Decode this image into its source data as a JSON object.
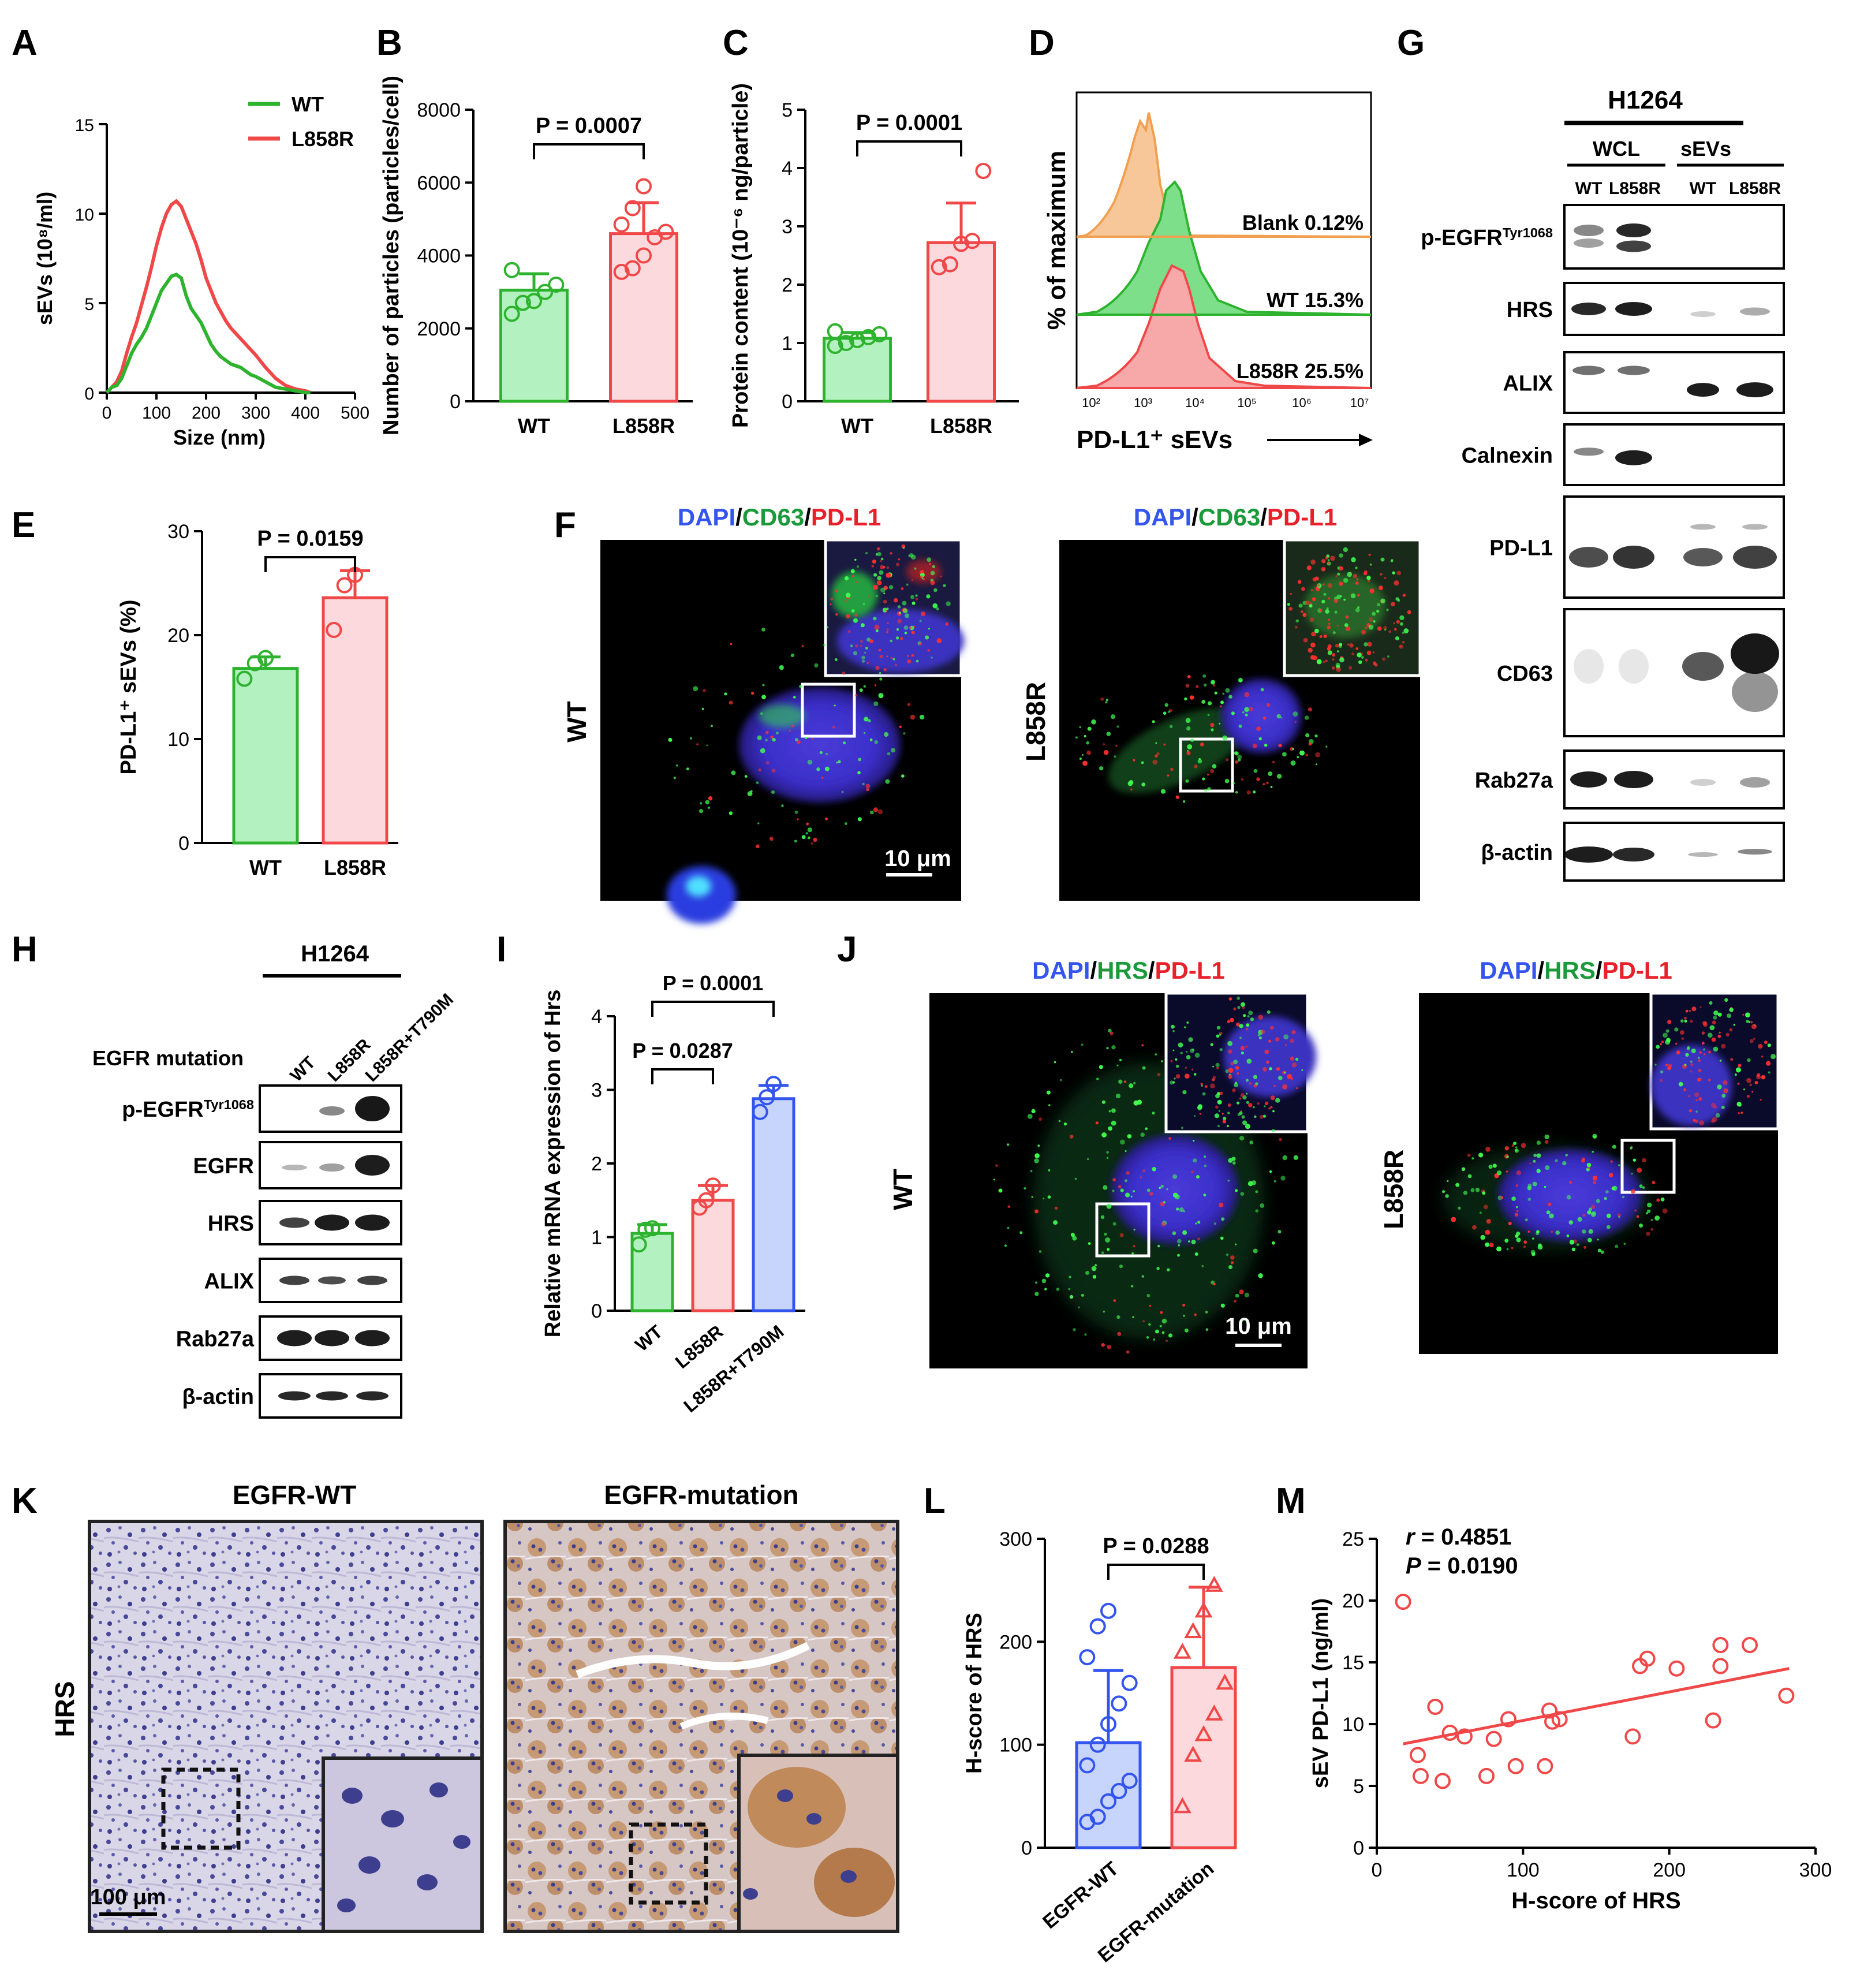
{
  "panel_letters": [
    "A",
    "B",
    "C",
    "D",
    "E",
    "F",
    "G",
    "H",
    "I",
    "J",
    "K",
    "L",
    "M"
  ],
  "colors": {
    "wt": "#2db32d",
    "mut": "#f04848",
    "wt_fill": "#b3f2c0",
    "mut_fill": "#fcd9dc",
    "blue": "#3355ee",
    "blue_fill": "#c7d4fb",
    "flow_orange": "#f0a050"
  },
  "stat_prefix": "P",
  "stat_sep": " = ",
  "chart_data": [
    {
      "id": "A",
      "type": "line",
      "ylabel": "sEVs (10⁸/ml)",
      "xlabel": "Size (nm)",
      "xlim": [
        0,
        500
      ],
      "ylim": [
        0,
        15
      ],
      "xticks": [
        0,
        100,
        200,
        300,
        400,
        500
      ],
      "yticks": [
        0,
        5,
        10,
        15
      ],
      "legend": "top-right",
      "series": [
        {
          "name": "WT",
          "color": "#2db32d",
          "x": [
            0,
            10,
            20,
            30,
            40,
            50,
            60,
            70,
            80,
            90,
            100,
            110,
            120,
            130,
            140,
            150,
            160,
            170,
            180,
            190,
            200,
            210,
            220,
            230,
            240,
            250,
            260,
            270,
            280,
            290,
            300,
            320,
            340,
            360,
            380,
            400,
            410
          ],
          "y": [
            0,
            0.3,
            0.4,
            0.8,
            1.5,
            2.2,
            2.7,
            3.1,
            3.6,
            4.3,
            5.0,
            5.7,
            6.1,
            6.5,
            6.6,
            6.4,
            5.4,
            4.7,
            4.3,
            3.9,
            3.3,
            2.7,
            2.3,
            2.0,
            1.8,
            1.6,
            1.5,
            1.4,
            1.2,
            1.0,
            0.9,
            0.6,
            0.3,
            0.2,
            0.1,
            0,
            0
          ]
        },
        {
          "name": "L858R",
          "color": "#f04848",
          "x": [
            0,
            10,
            20,
            30,
            40,
            50,
            60,
            70,
            80,
            90,
            100,
            110,
            120,
            130,
            140,
            150,
            160,
            170,
            180,
            190,
            200,
            210,
            220,
            230,
            240,
            250,
            260,
            270,
            280,
            290,
            300,
            320,
            340,
            360,
            380,
            400,
            410
          ],
          "y": [
            0,
            0.3,
            0.6,
            1.2,
            2.2,
            3.1,
            3.9,
            4.9,
            5.9,
            7.0,
            8.2,
            9.2,
            10.0,
            10.5,
            10.7,
            10.4,
            9.7,
            9.0,
            8.3,
            7.4,
            6.4,
            5.7,
            5.0,
            4.5,
            4.0,
            3.6,
            3.3,
            3.0,
            2.7,
            2.4,
            2.1,
            1.4,
            0.8,
            0.4,
            0.2,
            0.1,
            0
          ]
        }
      ]
    },
    {
      "id": "B",
      "type": "bar",
      "ylabel": "Number of particles (particles/cell)",
      "categories": [
        "WT",
        "L858R"
      ],
      "ylim": [
        0,
        8000
      ],
      "yticks": [
        0,
        2000,
        4000,
        6000,
        8000
      ],
      "values": [
        3050,
        4600
      ],
      "errors": [
        450,
        850
      ],
      "points": [
        [
          2400,
          2700,
          2750,
          3000,
          3200,
          3600
        ],
        [
          3550,
          3650,
          4000,
          4500,
          4650,
          4850,
          5300,
          5900
        ]
      ],
      "p_value": "0.0007"
    },
    {
      "id": "C",
      "type": "bar",
      "ylabel": "Protein content (10⁻⁶ ng/particle)",
      "categories": [
        "WT",
        "L858R"
      ],
      "ylim": [
        0,
        5
      ],
      "yticks": [
        0,
        1,
        2,
        3,
        4,
        5
      ],
      "values": [
        1.08,
        2.72
      ],
      "errors": [
        0.1,
        0.68
      ],
      "points": [
        [
          0.95,
          1.0,
          1.05,
          1.1,
          1.15,
          1.2
        ],
        [
          2.3,
          2.35,
          2.7,
          2.75,
          3.95
        ]
      ],
      "p_value": "0.0001"
    },
    {
      "id": "D",
      "type": "area",
      "ylabel": "% of maximum",
      "xlabel": "PD-L1⁺ sEVs",
      "xticks": [
        "10²",
        "10³",
        "10⁴",
        "10⁵",
        "10⁶",
        "10⁷"
      ],
      "series": [
        {
          "name": "Blank 0.12%",
          "color": "#f0a050"
        },
        {
          "name": "WT 15.3%",
          "color": "#2db32d"
        },
        {
          "name": "L858R 25.5%",
          "color": "#f04848"
        }
      ]
    },
    {
      "id": "E",
      "type": "bar",
      "ylabel": "PD-L1⁺ sEVs (%)",
      "categories": [
        "WT",
        "L858R"
      ],
      "ylim": [
        0,
        30
      ],
      "yticks": [
        0,
        10,
        20,
        30
      ],
      "values": [
        16.8,
        23.6
      ],
      "errors": [
        1.1,
        2.6
      ],
      "points": [
        [
          15.8,
          17.3,
          17.8
        ],
        [
          20.5,
          24.8,
          25.8
        ]
      ],
      "p_value": "0.0159"
    },
    {
      "id": "I",
      "type": "bar",
      "ylabel": "Relative mRNA expression of Hrs",
      "categories": [
        "WT",
        "L858R",
        "L858R+T790M"
      ],
      "ylim": [
        0,
        4
      ],
      "yticks": [
        0,
        1,
        2,
        3,
        4
      ],
      "values": [
        1.05,
        1.5,
        2.88
      ],
      "errors": [
        0.12,
        0.2,
        0.18
      ],
      "points": [
        [
          0.9,
          1.1,
          1.12
        ],
        [
          1.4,
          1.5,
          1.7
        ],
        [
          2.7,
          2.9,
          3.08
        ]
      ],
      "p_values": [
        "0.0287",
        "0.0001"
      ]
    },
    {
      "id": "L",
      "type": "bar",
      "ylabel": "H-score of HRS",
      "categories": [
        "EGFR-WT",
        "EGFR-mutation"
      ],
      "ylim": [
        0,
        300
      ],
      "yticks": [
        0,
        100,
        200,
        300
      ],
      "values": [
        102,
        175
      ],
      "errors": [
        70,
        78
      ],
      "points": [
        [
          25,
          30,
          45,
          55,
          65,
          80,
          100,
          120,
          140,
          160,
          185,
          215,
          230
        ],
        [
          40,
          90,
          110,
          130,
          160,
          190,
          210,
          230,
          255
        ]
      ],
      "p_value": "0.0288"
    },
    {
      "id": "M",
      "type": "scatter",
      "ylabel": "sEV PD-L1 (ng/ml)",
      "xlabel": "H-score of HRS",
      "xlim": [
        0,
        300
      ],
      "ylim": [
        0,
        25
      ],
      "xticks": [
        0,
        100,
        200,
        300
      ],
      "yticks": [
        0,
        5,
        10,
        15,
        20,
        25
      ],
      "x": [
        18,
        28,
        30,
        40,
        45,
        50,
        60,
        75,
        80,
        90,
        95,
        115,
        118,
        120,
        125,
        175,
        180,
        185,
        205,
        230,
        235,
        235,
        255,
        280
      ],
      "y": [
        19.9,
        7.5,
        5.8,
        11.4,
        5.4,
        9.3,
        9.0,
        5.8,
        8.8,
        10.4,
        6.6,
        6.6,
        11.1,
        10.2,
        10.4,
        9.0,
        14.7,
        15.3,
        14.5,
        10.3,
        14.7,
        16.4,
        16.4,
        12.3
      ],
      "fit": {
        "x": [
          18,
          282
        ],
        "y": [
          8.4,
          14.5
        ]
      },
      "r_label": "r",
      "r_value": "0.4851",
      "p_value": "0.0190"
    }
  ],
  "panel_F": {
    "title_parts": [
      "DAPI",
      "/",
      "CD63",
      "/",
      "PD-L1"
    ],
    "cells": [
      "WT",
      "L858R"
    ],
    "scalebar": "10 μm"
  },
  "panel_J": {
    "title_parts": [
      "DAPI",
      "/",
      "HRS",
      "/",
      "PD-L1"
    ],
    "cells": [
      "WT",
      "L858R"
    ],
    "scalebar": "10 μm"
  },
  "panel_G": {
    "cell_line": "H1264",
    "groups": [
      "WCL",
      "sEVs"
    ],
    "lanes": [
      "WT",
      "L858R",
      "WT",
      "L858R"
    ],
    "blots": [
      "p-EGFR",
      "HRS",
      "ALIX",
      "Calnexin",
      "PD-L1",
      "CD63",
      "Rab27a",
      "β-actin"
    ],
    "superscript": "Tyr1068"
  },
  "panel_H": {
    "cell_line": "H1264",
    "row_label": "EGFR mutation",
    "lanes": [
      "WT",
      "L858R",
      "L858R+T790M"
    ],
    "blots": [
      "p-EGFR",
      "EGFR",
      "HRS",
      "ALIX",
      "Rab27a",
      "β-actin"
    ],
    "superscript": "Tyr1068"
  },
  "panel_K": {
    "columns": [
      "EGFR-WT",
      "EGFR-mutation"
    ],
    "row": "HRS",
    "scalebar": "100 μm"
  }
}
